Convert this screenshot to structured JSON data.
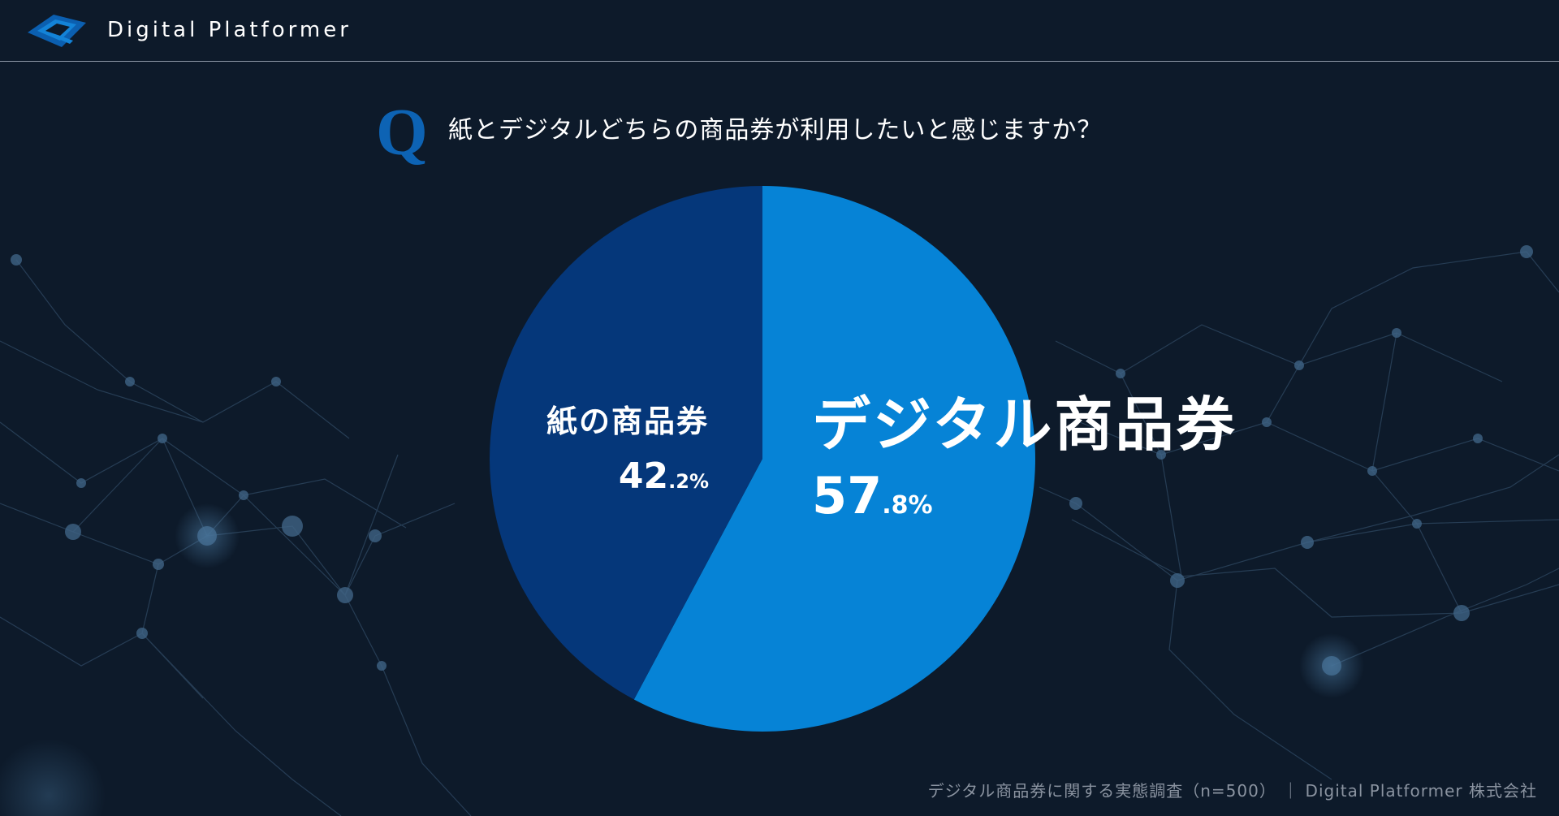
{
  "header": {
    "brand": "Digital Platformer"
  },
  "question": {
    "mark": "Q",
    "text": "紙とデジタルどちらの商品券が利用したいと感じますか？"
  },
  "chart_data": {
    "type": "pie",
    "slices": [
      {
        "label": "デジタル商品券",
        "value": 57.8,
        "value_int": "57",
        "value_dec": ".8%",
        "color": "#0683d6"
      },
      {
        "label": "紙の商品券",
        "value": 42.2,
        "value_int": "42",
        "value_dec": ".2%",
        "color": "#05377a"
      }
    ]
  },
  "footer": {
    "source": "デジタル商品券に関する実態調査（n=500） ｜ Digital Platformer 株式会社"
  }
}
